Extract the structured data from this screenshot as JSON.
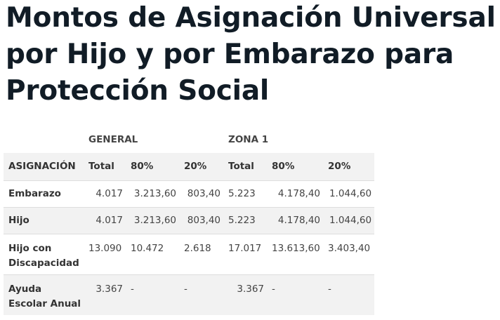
{
  "title": {
    "line1": "Montos de Asignación Universal",
    "line2": "por Hijo y por Embarazo para",
    "line3": "Protección Social"
  },
  "table": {
    "group_headers": [
      "",
      "GENERAL",
      "",
      "",
      "ZONA 1",
      "",
      ""
    ],
    "column_headers": [
      "ASIGNACIÓN",
      "Total",
      "80%",
      "20%",
      "Total",
      "80%",
      "20%"
    ],
    "rows": [
      {
        "label": "Embarazo",
        "cells": [
          "4.017",
          "3.213,60",
          "803,40",
          "5.223",
          "4.178,40",
          "1.044,60"
        ]
      },
      {
        "label": "Hijo",
        "cells": [
          "4.017",
          "3.213,60",
          "803,40",
          "5.223",
          "4.178,40",
          "1.044,60"
        ]
      },
      {
        "label_line1": "Hijo con",
        "label_line2": "Discapacidad",
        "cells": [
          "13.090",
          "10.472",
          "2.618",
          "17.017",
          "13.613,60",
          "3.403,40"
        ]
      },
      {
        "label_line1": "Ayuda",
        "label_line2": "Escolar Anual",
        "cells": [
          "3.367",
          "-",
          "-",
          "3.367",
          "-",
          "-"
        ]
      }
    ]
  }
}
